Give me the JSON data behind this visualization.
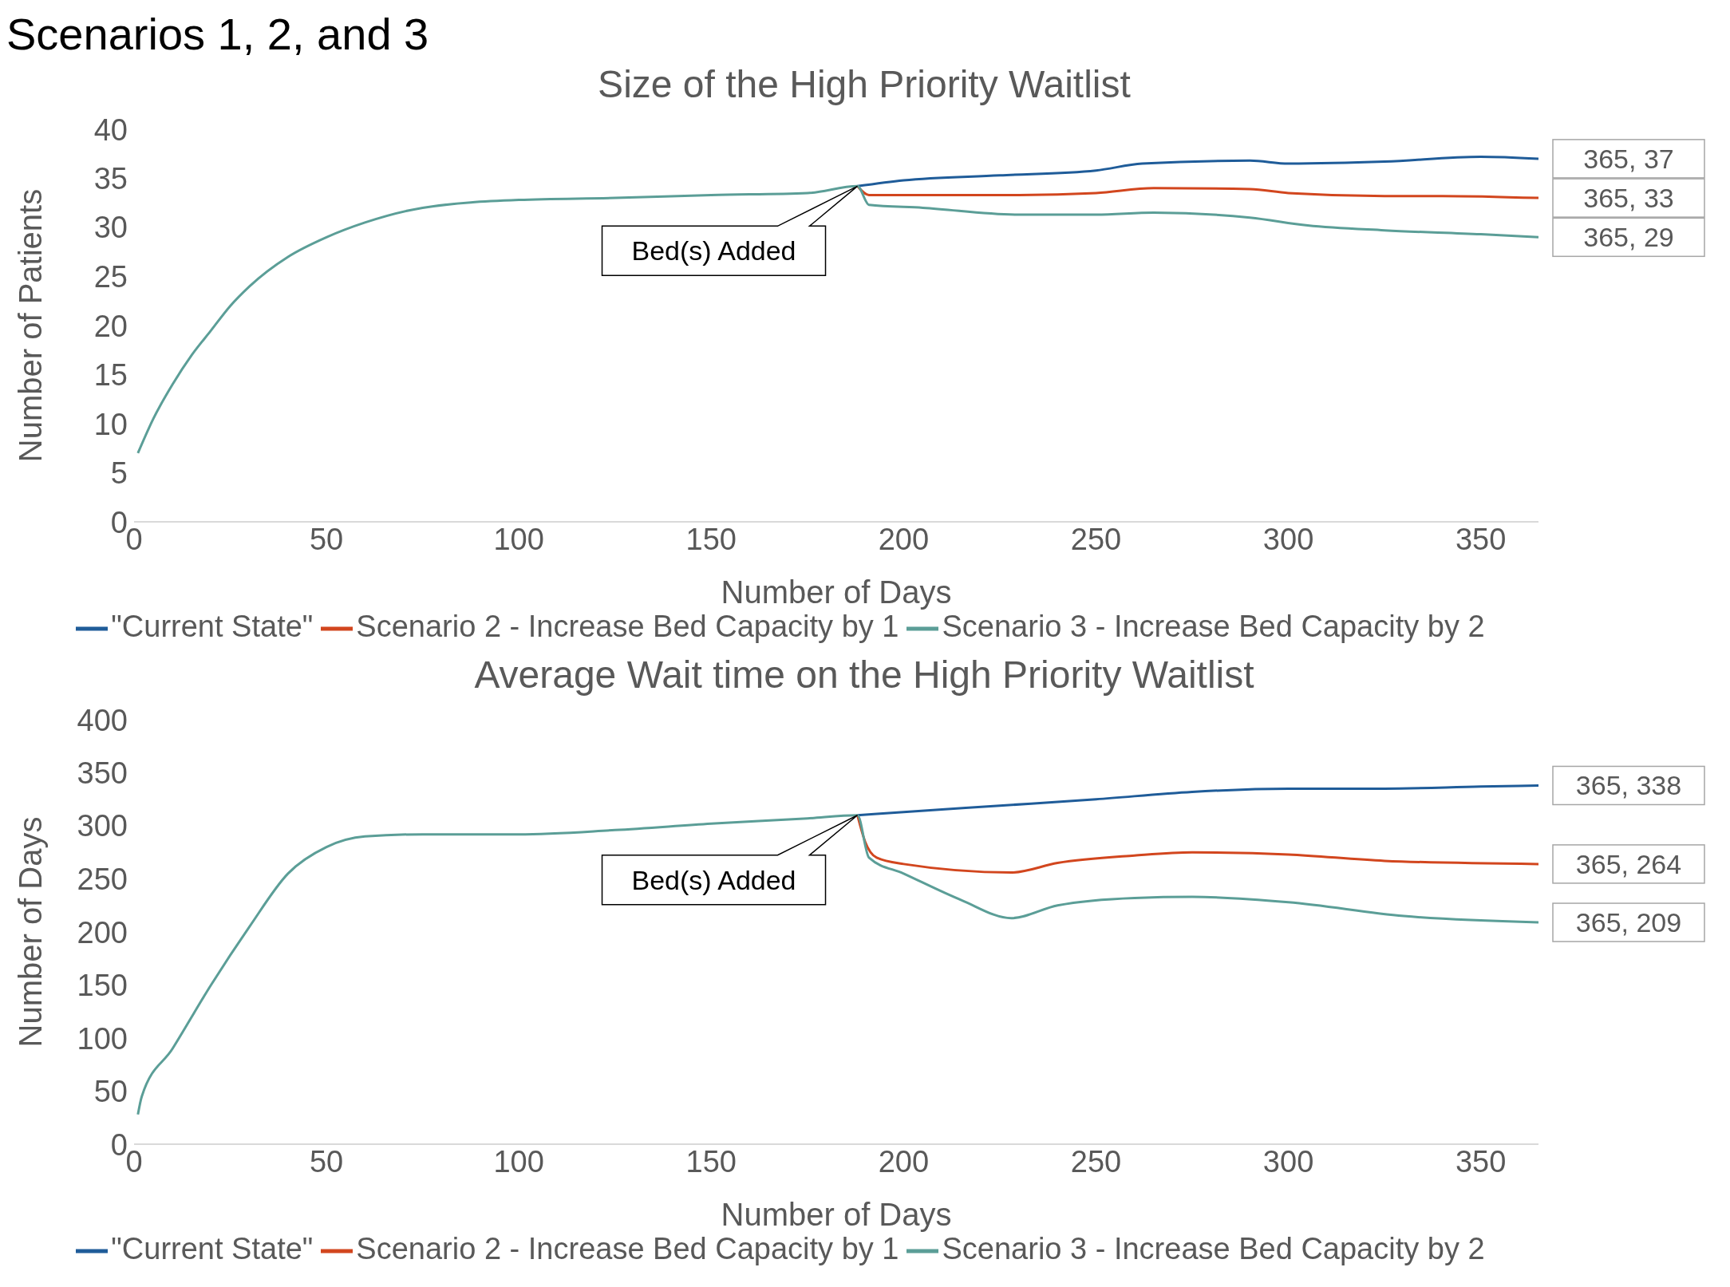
{
  "chart_data": [
    {
      "type": "line",
      "title": "Size of the High Priority Waitlist",
      "xlabel": "Number of Days",
      "ylabel": "Number of Patients",
      "xlim": [
        0,
        365
      ],
      "xticks": [
        0,
        50,
        100,
        150,
        200,
        250,
        300,
        350
      ],
      "ylim": [
        0,
        40
      ],
      "yticks": [
        0,
        5,
        10,
        15,
        20,
        25,
        30,
        35,
        40
      ],
      "grid": false,
      "legend": "bottom",
      "marker": "none",
      "annotations": [
        "Scenarios 1, 2, and 3",
        {
          "text": "Bed(s) Added",
          "x": 188,
          "y": 34.2
        }
      ],
      "series": [
        {
          "name": "\"Current State\"",
          "color": "#1f5c99",
          "x": [
            188,
            200,
            225,
            250,
            262,
            290,
            300,
            325,
            350,
            365
          ],
          "values": [
            34.2,
            34.8,
            35.3,
            35.8,
            36.5,
            36.8,
            36.5,
            36.7,
            37.2,
            37
          ],
          "value_labels": [
            null,
            null,
            null,
            null,
            null,
            null,
            null,
            null,
            null,
            "365, 37"
          ]
        },
        {
          "name": "Scenario 2 - Increase Bed Capacity by 1",
          "color": "#d2461e",
          "x": [
            188,
            191,
            200,
            230,
            250,
            265,
            290,
            300,
            325,
            340,
            365
          ],
          "values": [
            34.2,
            33.3,
            33.3,
            33.3,
            33.5,
            34,
            33.9,
            33.5,
            33.2,
            33.2,
            33
          ],
          "value_labels": [
            null,
            null,
            null,
            null,
            null,
            null,
            null,
            null,
            null,
            null,
            "365, 33"
          ]
        },
        {
          "name": "Scenario 3 - Increase Bed Capacity by 2",
          "color": "#5b9e97",
          "x": [
            1,
            5,
            10,
            15,
            20,
            25,
            30,
            40,
            50,
            60,
            75,
            100,
            125,
            150,
            175,
            188,
            191,
            205,
            230,
            250,
            265,
            290,
            305,
            325,
            350,
            365
          ],
          "values": [
            7,
            10.5,
            14,
            17,
            19.5,
            22,
            24,
            27,
            29,
            30.5,
            32,
            32.8,
            33,
            33.3,
            33.5,
            34.2,
            32.3,
            32,
            31.3,
            31.3,
            31.5,
            31,
            30.2,
            29.7,
            29.3,
            29
          ],
          "value_labels": [
            null,
            null,
            null,
            null,
            null,
            null,
            null,
            null,
            null,
            null,
            null,
            null,
            null,
            null,
            null,
            null,
            null,
            null,
            null,
            null,
            null,
            null,
            null,
            null,
            null,
            "365, 29"
          ]
        }
      ]
    },
    {
      "type": "line",
      "title": "Average Wait time on the High Priority Waitlist",
      "xlabel": "Number of Days",
      "ylabel": "Number of Days",
      "xlim": [
        0,
        365
      ],
      "xticks": [
        0,
        50,
        100,
        150,
        200,
        250,
        300,
        350
      ],
      "ylim": [
        0,
        400
      ],
      "yticks": [
        0,
        50,
        100,
        150,
        200,
        250,
        300,
        350,
        400
      ],
      "grid": false,
      "legend": "bottom",
      "marker": "none",
      "annotations": [
        {
          "text": "Bed(s) Added",
          "x": 188,
          "y": 310
        }
      ],
      "series": [
        {
          "name": "\"Current State\"",
          "color": "#1f5c99",
          "x": [
            188,
            200,
            225,
            250,
            275,
            300,
            325,
            350,
            365
          ],
          "values": [
            310,
            313,
            319,
            325,
            332,
            335,
            335,
            337,
            338
          ],
          "value_labels": [
            null,
            null,
            null,
            null,
            null,
            null,
            null,
            null,
            "365, 338"
          ]
        },
        {
          "name": "Scenario 2 - Increase Bed Capacity by 1",
          "color": "#d2461e",
          "x": [
            188,
            190,
            193,
            200,
            228,
            240,
            260,
            275,
            300,
            325,
            365
          ],
          "values": [
            310,
            285,
            270,
            264,
            256,
            265,
            272,
            275,
            273,
            267,
            264
          ],
          "value_labels": [
            null,
            null,
            null,
            null,
            null,
            null,
            null,
            null,
            null,
            null,
            "365, 264"
          ]
        },
        {
          "name": "Scenario 3 - Increase Bed Capacity by 2",
          "color": "#5b9e97",
          "x": [
            1,
            2,
            10,
            20,
            30,
            40,
            50,
            60,
            75,
            100,
            125,
            150,
            175,
            188,
            191,
            200,
            215,
            228,
            240,
            260,
            275,
            300,
            330,
            365
          ],
          "values": [
            28,
            45,
            90,
            150,
            205,
            255,
            280,
            290,
            292,
            292,
            296,
            302,
            307,
            310,
            270,
            255,
            230,
            213,
            225,
            232,
            233,
            228,
            215,
            209
          ],
          "value_labels": [
            null,
            null,
            null,
            null,
            null,
            null,
            null,
            null,
            null,
            null,
            null,
            null,
            null,
            null,
            null,
            null,
            null,
            null,
            null,
            null,
            null,
            null,
            null,
            "365, 209"
          ]
        }
      ]
    }
  ]
}
